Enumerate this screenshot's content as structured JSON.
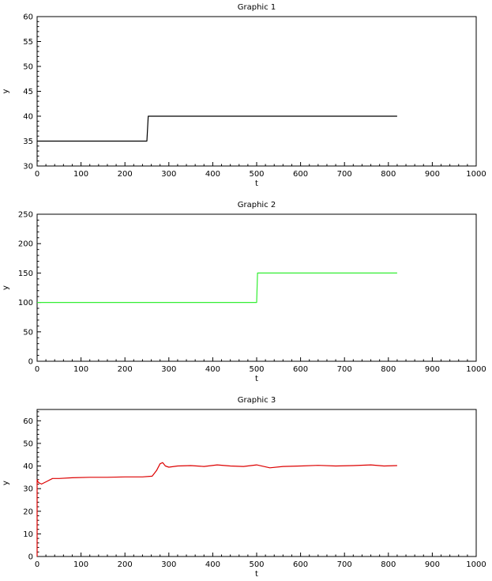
{
  "chart_data": [
    {
      "type": "line",
      "title": "Graphic 1",
      "xlabel": "t",
      "ylabel": "y",
      "xlim": [
        0,
        1000
      ],
      "ylim": [
        30,
        60
      ],
      "xticks": [
        0,
        100,
        200,
        300,
        400,
        500,
        600,
        700,
        800,
        900,
        1000
      ],
      "yticks": [
        30,
        35,
        40,
        45,
        50,
        55,
        60
      ],
      "grid": false,
      "series": [
        {
          "color": "#000000",
          "x": [
            0,
            250,
            253,
            820
          ],
          "y": [
            35,
            35,
            40,
            40
          ]
        }
      ]
    },
    {
      "type": "line",
      "title": "Graphic 2",
      "xlabel": "t",
      "ylabel": "y",
      "xlim": [
        0,
        1000
      ],
      "ylim": [
        0,
        250
      ],
      "xticks": [
        0,
        100,
        200,
        300,
        400,
        500,
        600,
        700,
        800,
        900,
        1000
      ],
      "yticks": [
        0,
        50,
        100,
        150,
        200,
        250
      ],
      "grid": false,
      "series": [
        {
          "color": "#33ee33",
          "x": [
            0,
            500,
            502,
            820
          ],
          "y": [
            100,
            100,
            150,
            150
          ]
        }
      ]
    },
    {
      "type": "line",
      "title": "Graphic 3",
      "xlabel": "t",
      "ylabel": "y",
      "xlim": [
        0,
        1000
      ],
      "ylim": [
        0,
        65
      ],
      "xticks": [
        0,
        100,
        200,
        300,
        400,
        500,
        600,
        700,
        800,
        900,
        1000
      ],
      "yticks": [
        0,
        10,
        20,
        30,
        40,
        50,
        60
      ],
      "grid": false,
      "series": [
        {
          "color": "#dd0000",
          "x": [
            0,
            0,
            2,
            5,
            10,
            20,
            35,
            50,
            80,
            120,
            160,
            200,
            240,
            262,
            272,
            280,
            286,
            292,
            300,
            320,
            350,
            380,
            410,
            440,
            470,
            500,
            530,
            560,
            600,
            640,
            680,
            720,
            760,
            790,
            820
          ],
          "y": [
            0,
            34,
            33,
            32.5,
            32,
            33,
            34.5,
            34.5,
            34.8,
            35,
            35,
            35.2,
            35.2,
            35.5,
            38,
            41,
            41.5,
            40,
            39.5,
            40,
            40.2,
            39.8,
            40.5,
            40,
            39.8,
            40.5,
            39.2,
            39.8,
            40,
            40.3,
            40,
            40.2,
            40.5,
            40,
            40.2
          ]
        }
      ]
    }
  ]
}
